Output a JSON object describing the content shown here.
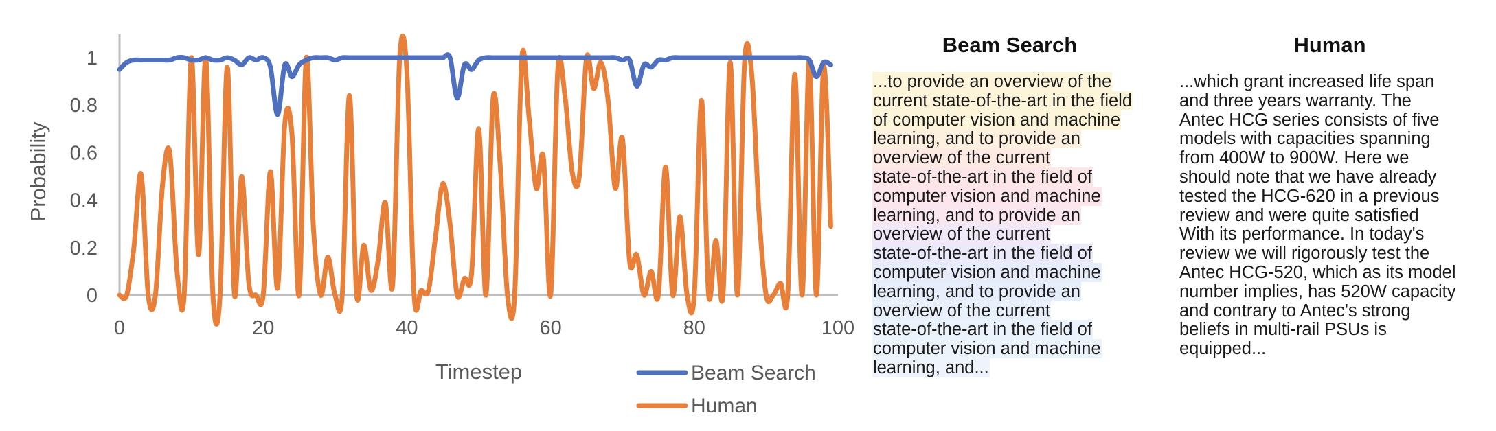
{
  "chart_data": {
    "type": "line",
    "xlabel": "Timestep",
    "ylabel": "Probability",
    "xlim": [
      0,
      100
    ],
    "ylim": [
      0,
      1.1
    ],
    "x_ticks": [
      "0",
      "20",
      "40",
      "60",
      "80",
      "100"
    ],
    "y_ticks": [
      "0",
      "0.2",
      "0.4",
      "0.6",
      "0.8",
      "1"
    ],
    "grid": false,
    "legend_position": "bottom-right",
    "series": [
      {
        "name": "Beam Search",
        "color": "#4f6fbf",
        "x": [
          0,
          1,
          2,
          3,
          4,
          5,
          6,
          7,
          8,
          9,
          10,
          11,
          12,
          13,
          14,
          15,
          16,
          17,
          18,
          19,
          20,
          21,
          22,
          23,
          24,
          25,
          26,
          27,
          28,
          29,
          30,
          31,
          32,
          33,
          34,
          35,
          36,
          37,
          38,
          39,
          40,
          41,
          42,
          43,
          44,
          45,
          46,
          47,
          48,
          49,
          50,
          51,
          52,
          53,
          54,
          55,
          56,
          57,
          58,
          59,
          60,
          61,
          62,
          63,
          64,
          65,
          66,
          67,
          68,
          69,
          70,
          71,
          72,
          73,
          74,
          75,
          76,
          77,
          78,
          79,
          80,
          81,
          82,
          83,
          84,
          85,
          86,
          87,
          88,
          89,
          90,
          91,
          92,
          93,
          94,
          95,
          96,
          97,
          98,
          99
        ],
        "values": [
          0.95,
          0.98,
          0.99,
          0.99,
          0.99,
          0.99,
          0.99,
          0.99,
          1.0,
          1.0,
          0.99,
          0.99,
          1.0,
          0.99,
          0.99,
          1.0,
          0.99,
          0.97,
          1.0,
          0.99,
          1.0,
          0.96,
          0.76,
          0.97,
          0.92,
          0.97,
          0.99,
          1.0,
          1.0,
          1.0,
          0.99,
          1.0,
          1.0,
          1.0,
          1.0,
          1.0,
          1.0,
          1.0,
          1.0,
          1.0,
          1.0,
          1.0,
          1.0,
          1.0,
          1.0,
          1.0,
          1.0,
          0.83,
          0.97,
          0.95,
          0.99,
          1.0,
          1.0,
          1.0,
          1.0,
          1.0,
          1.0,
          1.0,
          1.0,
          1.0,
          1.0,
          1.0,
          1.0,
          1.0,
          1.0,
          1.0,
          1.0,
          1.0,
          1.0,
          1.0,
          0.99,
          0.99,
          0.88,
          0.97,
          0.96,
          0.99,
          0.99,
          1.0,
          1.0,
          1.0,
          1.0,
          1.0,
          1.0,
          1.0,
          1.0,
          1.0,
          1.0,
          1.0,
          1.0,
          1.0,
          1.0,
          1.0,
          1.0,
          1.0,
          1.0,
          1.0,
          0.99,
          0.92,
          0.98,
          0.97
        ]
      },
      {
        "name": "Human",
        "color": "#e8803a",
        "x": [
          0,
          1,
          2,
          3,
          4,
          5,
          6,
          7,
          8,
          9,
          10,
          11,
          12,
          13,
          14,
          15,
          16,
          17,
          18,
          19,
          20,
          21,
          22,
          23,
          24,
          25,
          26,
          27,
          28,
          29,
          30,
          31,
          32,
          33,
          34,
          35,
          36,
          37,
          38,
          39,
          40,
          41,
          42,
          43,
          44,
          45,
          46,
          47,
          48,
          49,
          50,
          51,
          52,
          53,
          54,
          55,
          56,
          57,
          58,
          59,
          60,
          61,
          62,
          63,
          64,
          65,
          66,
          67,
          68,
          69,
          70,
          71,
          72,
          73,
          74,
          75,
          76,
          77,
          78,
          79,
          80,
          81,
          82,
          83,
          84,
          85,
          86,
          87,
          88,
          89,
          90,
          91,
          92,
          93,
          94,
          95,
          96,
          97,
          98,
          99
        ],
        "values": [
          0.0,
          0.0,
          0.2,
          0.51,
          0.0,
          0.0,
          0.47,
          0.6,
          0.1,
          0.0,
          1.0,
          0.17,
          1.0,
          0.0,
          0.0,
          0.96,
          0.0,
          0.5,
          0.05,
          0.0,
          0.0,
          0.52,
          0.03,
          0.72,
          0.68,
          0.0,
          1.0,
          0.28,
          0.0,
          0.16,
          0.0,
          0.0,
          0.84,
          0.0,
          0.21,
          0.02,
          0.15,
          0.39,
          0.04,
          1.0,
          0.94,
          0.0,
          0.02,
          0.02,
          0.25,
          0.47,
          0.3,
          0.0,
          0.07,
          0.09,
          0.7,
          0.0,
          0.83,
          0.54,
          0.0,
          0.0,
          1.0,
          0.75,
          0.45,
          0.58,
          0.0,
          0.95,
          0.84,
          0.52,
          0.5,
          1.0,
          0.87,
          0.98,
          0.82,
          0.45,
          0.66,
          0.14,
          0.17,
          0.0,
          0.1,
          0.0,
          0.54,
          0.0,
          0.33,
          0.0,
          0.0,
          0.82,
          0.0,
          0.23,
          0.0,
          0.98,
          0.0,
          0.98,
          0.93,
          0.35,
          0.0,
          0.0,
          0.05,
          0.0,
          0.93,
          0.0,
          0.99,
          0.0,
          0.96,
          0.29
        ]
      }
    ]
  },
  "panels": {
    "beam": {
      "title": "Beam Search",
      "lines": [
        {
          "text": "...to provide an overview of the",
          "bg": "#fdf5d9"
        },
        {
          "text": "current state-of-the-art in the field",
          "bg": "#fdf5d9"
        },
        {
          "text": "of computer vision and machine",
          "bg": "#fdf5d9"
        },
        {
          "text": "learning, and to provide an",
          "bg": "#fdf0df"
        },
        {
          "text": "overview of the current",
          "bg": "#fdeae3"
        },
        {
          "text": "state-of-the-art in the field of",
          "bg": "#fce6e8"
        },
        {
          "text": "computer vision and machine",
          "bg": "#fce6ec"
        },
        {
          "text": "learning, and to provide an",
          "bg": "#f9e6ee"
        },
        {
          "text": "overview of the current",
          "bg": "#f0e8f6"
        },
        {
          "text": "state-of-the-art in the field of",
          "bg": "#eaeafa"
        },
        {
          "text": "computer vision and machine",
          "bg": "#e6ecfa"
        },
        {
          "text": "learning, and to provide an",
          "bg": "#e6eefb"
        },
        {
          "text": "overview of the current",
          "bg": "#e8f0fb"
        },
        {
          "text": "state-of-the-art in the field of",
          "bg": "#eaf2fb"
        },
        {
          "text": "computer vision and machine",
          "bg": "#ebf3fb"
        },
        {
          "text": "learning, and...",
          "bg": "#edf4fb"
        }
      ]
    },
    "human": {
      "title": "Human",
      "lines": [
        {
          "text": "...which grant increased life span"
        },
        {
          "text": "and three years warranty. The"
        },
        {
          "text": "Antec HCG series consists of five"
        },
        {
          "text": "models with capacities spanning"
        },
        {
          "text": "from 400W to 900W. Here we"
        },
        {
          "text": "should note that we have already"
        },
        {
          "text": "tested the HCG-620 in a previous"
        },
        {
          "text": "review and were quite satisfied"
        },
        {
          "text": "With its performance. In today's"
        },
        {
          "text": "review we will rigorously test the"
        },
        {
          "text": "Antec HCG-520, which as its model"
        },
        {
          "text": "number implies, has 520W capacity"
        },
        {
          "text": "and contrary to Antec's strong"
        },
        {
          "text": "beliefs in multi-rail PSUs is"
        },
        {
          "text": "equipped..."
        }
      ]
    }
  }
}
